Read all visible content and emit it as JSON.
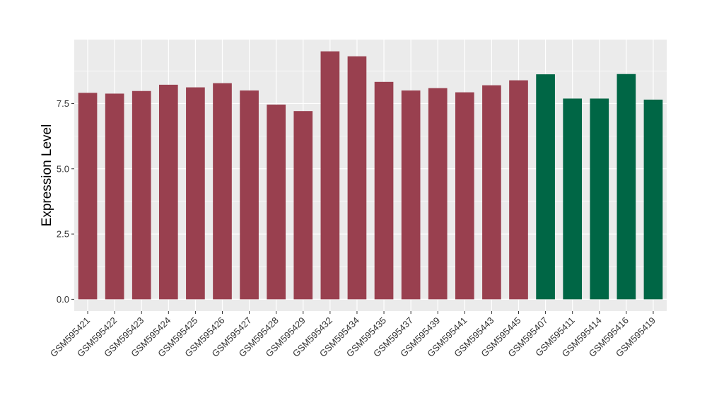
{
  "chart_data": {
    "type": "bar",
    "title": "",
    "xlabel": "",
    "ylabel": "Expression Level",
    "ylim": [
      -0.45,
      9.95
    ],
    "yticks": [
      0.0,
      2.5,
      5.0,
      7.5
    ],
    "ytick_labels": [
      "0.0",
      "2.5",
      "5.0",
      "7.5"
    ],
    "grid": true,
    "legend": "none",
    "categories": [
      "GSM595421",
      "GSM595422",
      "GSM595423",
      "GSM595424",
      "GSM595425",
      "GSM595426",
      "GSM595427",
      "GSM595428",
      "GSM595429",
      "GSM595432",
      "GSM595434",
      "GSM595435",
      "GSM595437",
      "GSM595439",
      "GSM595441",
      "GSM595443",
      "GSM595445",
      "GSM595407",
      "GSM595411",
      "GSM595414",
      "GSM595416",
      "GSM595419"
    ],
    "values": [
      7.91,
      7.88,
      7.98,
      8.22,
      8.12,
      8.28,
      8.0,
      7.46,
      7.21,
      9.5,
      9.31,
      8.33,
      8.0,
      8.09,
      7.93,
      8.2,
      8.39,
      8.62,
      7.69,
      7.69,
      8.63,
      7.65
    ],
    "bar_groups": [
      0,
      0,
      0,
      0,
      0,
      0,
      0,
      0,
      0,
      0,
      0,
      0,
      0,
      0,
      0,
      0,
      0,
      1,
      1,
      1,
      1,
      1
    ],
    "group_colors": [
      "#99404f",
      "#006645"
    ],
    "panel_background": "#ebebeb",
    "grid_color": "#ffffff"
  }
}
